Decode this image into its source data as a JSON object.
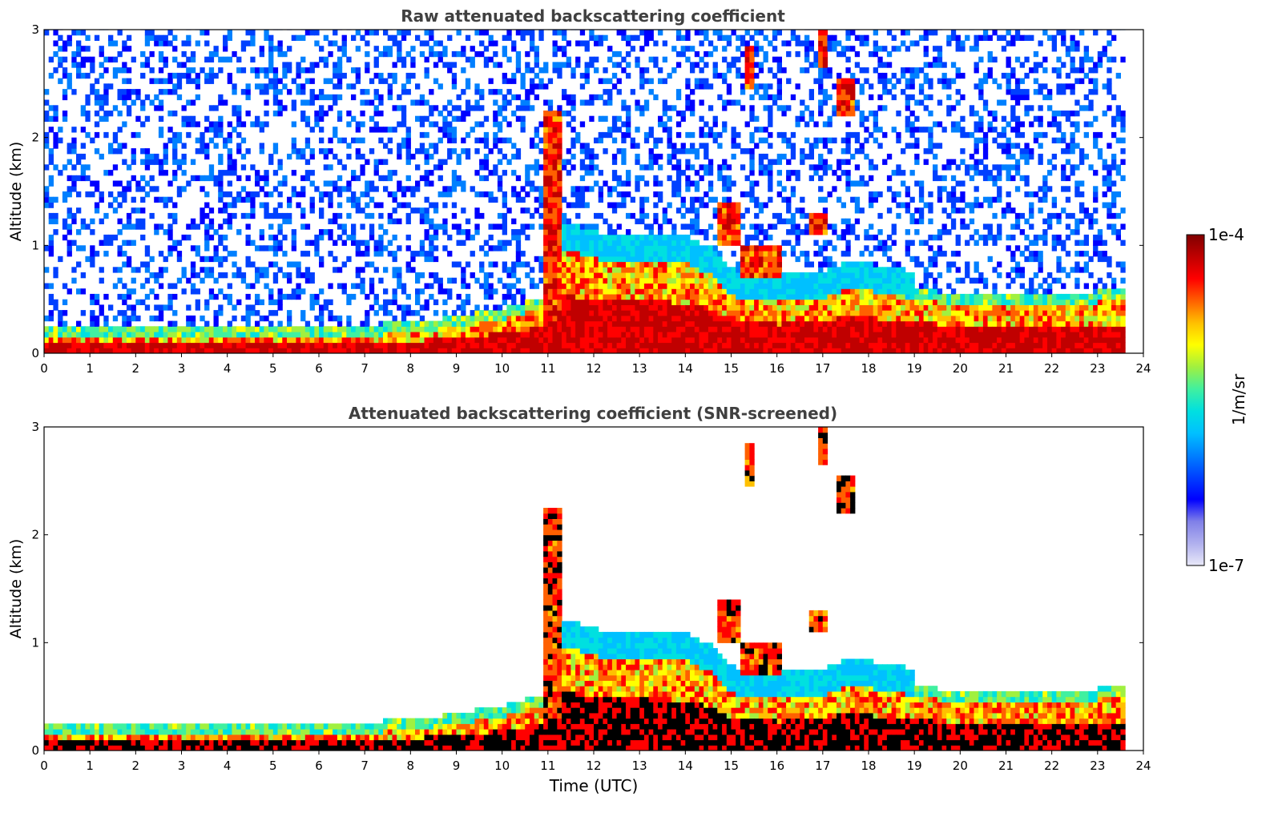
{
  "figure": {
    "colorbar": {
      "label": "1/m/sr",
      "max_label": "1e-4",
      "min_label": "1e-7",
      "scale": "log",
      "range": [
        1e-07,
        0.0001
      ],
      "colormap": [
        "#e8e8f8",
        "#b0b0ee",
        "#8080e8",
        "#0000ff",
        "#0040ff",
        "#0080ff",
        "#00c0ff",
        "#00e0e0",
        "#40f0a0",
        "#a0f040",
        "#ffff00",
        "#ffc000",
        "#ff6000",
        "#ff0000",
        "#c00000",
        "#800000"
      ]
    }
  },
  "chart_data": [
    {
      "type": "heatmap",
      "title": "Raw attenuated backscattering coefficient",
      "ylabel": "Altitude (km)",
      "xlabel": "",
      "xlim": [
        0,
        24
      ],
      "ylim": [
        0,
        3
      ],
      "xticks": [
        "0",
        "1",
        "2",
        "3",
        "4",
        "5",
        "6",
        "7",
        "8",
        "9",
        "10",
        "11",
        "12",
        "13",
        "14",
        "15",
        "16",
        "17",
        "18",
        "19",
        "20",
        "21",
        "22",
        "23",
        "24"
      ],
      "yticks": [
        "0",
        "1",
        "2",
        "3"
      ],
      "data_end_hour": 23.6,
      "boundary_layer_top_km": [
        [
          0,
          0.13
        ],
        [
          1,
          0.12
        ],
        [
          2,
          0.12
        ],
        [
          3,
          0.11
        ],
        [
          4,
          0.11
        ],
        [
          5,
          0.11
        ],
        [
          6,
          0.12
        ],
        [
          7,
          0.14
        ],
        [
          8,
          0.17
        ],
        [
          9,
          0.22
        ],
        [
          10,
          0.3
        ],
        [
          10.8,
          0.4
        ],
        [
          11.2,
          0.95
        ],
        [
          12,
          0.85
        ],
        [
          13,
          0.85
        ],
        [
          14,
          0.8
        ],
        [
          14.5,
          0.7
        ],
        [
          15,
          0.5
        ],
        [
          16,
          0.45
        ],
        [
          17,
          0.5
        ],
        [
          17.6,
          0.6
        ],
        [
          18,
          0.55
        ],
        [
          19,
          0.48
        ],
        [
          20,
          0.42
        ],
        [
          21,
          0.4
        ],
        [
          22,
          0.4
        ],
        [
          23,
          0.45
        ],
        [
          23.6,
          0.45
        ]
      ],
      "cloud_layers_km": [
        {
          "x0": 10.8,
          "x1": 11.2,
          "y0": 0.3,
          "y1": 2.2
        },
        {
          "x0": 14.6,
          "x1": 15.1,
          "y0": 1.0,
          "y1": 1.4
        },
        {
          "x0": 15.1,
          "x1": 16.0,
          "y0": 0.7,
          "y1": 1.0
        },
        {
          "x0": 15.2,
          "x1": 15.4,
          "y0": 2.4,
          "y1": 2.8
        },
        {
          "x0": 16.8,
          "x1": 17.0,
          "y0": 2.6,
          "y1": 3.0
        },
        {
          "x0": 17.2,
          "x1": 17.6,
          "y0": 2.2,
          "y1": 2.5
        },
        {
          "x0": 16.6,
          "x1": 17.0,
          "y0": 1.1,
          "y1": 1.3
        }
      ]
    },
    {
      "type": "heatmap",
      "title": "Attenuated backscattering coefficient (SNR-screened)",
      "ylabel": "Altitude (km)",
      "xlabel": "Time (UTC)",
      "xlim": [
        0,
        24
      ],
      "ylim": [
        0,
        3
      ],
      "xticks": [
        "0",
        "1",
        "2",
        "3",
        "4",
        "5",
        "6",
        "7",
        "8",
        "9",
        "10",
        "11",
        "12",
        "13",
        "14",
        "15",
        "16",
        "17",
        "18",
        "19",
        "20",
        "21",
        "22",
        "23",
        "24"
      ],
      "yticks": [
        "0",
        "1",
        "2",
        "3"
      ],
      "data_end_hour": 23.6,
      "boundary_layer_top_km": [
        [
          0,
          0.13
        ],
        [
          1,
          0.12
        ],
        [
          2,
          0.12
        ],
        [
          3,
          0.11
        ],
        [
          4,
          0.11
        ],
        [
          5,
          0.11
        ],
        [
          6,
          0.12
        ],
        [
          7,
          0.14
        ],
        [
          8,
          0.17
        ],
        [
          9,
          0.22
        ],
        [
          10,
          0.3
        ],
        [
          10.8,
          0.4
        ],
        [
          11.2,
          0.95
        ],
        [
          12,
          0.85
        ],
        [
          13,
          0.85
        ],
        [
          14,
          0.8
        ],
        [
          14.5,
          0.7
        ],
        [
          15,
          0.5
        ],
        [
          16,
          0.45
        ],
        [
          17,
          0.5
        ],
        [
          17.6,
          0.6
        ],
        [
          18,
          0.55
        ],
        [
          19,
          0.48
        ],
        [
          20,
          0.42
        ],
        [
          21,
          0.4
        ],
        [
          22,
          0.4
        ],
        [
          23,
          0.45
        ],
        [
          23.6,
          0.45
        ]
      ],
      "cloud_layers_km": [
        {
          "x0": 10.8,
          "x1": 11.2,
          "y0": 0.3,
          "y1": 2.2
        },
        {
          "x0": 14.6,
          "x1": 15.1,
          "y0": 1.0,
          "y1": 1.4
        },
        {
          "x0": 15.1,
          "x1": 16.0,
          "y0": 0.7,
          "y1": 1.0
        },
        {
          "x0": 15.2,
          "x1": 15.4,
          "y0": 2.4,
          "y1": 2.8
        },
        {
          "x0": 16.8,
          "x1": 17.0,
          "y0": 2.6,
          "y1": 3.0
        },
        {
          "x0": 17.2,
          "x1": 17.6,
          "y0": 2.2,
          "y1": 2.5
        },
        {
          "x0": 16.6,
          "x1": 17.0,
          "y0": 1.1,
          "y1": 1.3
        }
      ]
    }
  ]
}
